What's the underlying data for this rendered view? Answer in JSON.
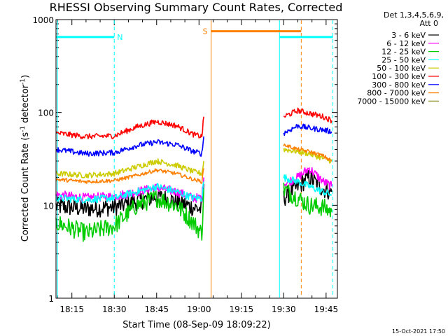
{
  "chart_data": {
    "type": "line",
    "title": "RHESSI Observing Summary Count Rates, Corrected",
    "xlabel": "Start Time (08-Sep-09 18:09:22)",
    "ylabel_parts": [
      "Corrected Count Rate (s",
      "-1",
      " detector",
      "-1",
      ")"
    ],
    "x_ticks": [
      "18:15",
      "18:30",
      "18:45",
      "19:00",
      "19:15",
      "19:30",
      "19:45"
    ],
    "x_tick_minutes": [
      15,
      30,
      45,
      60,
      75,
      90,
      105
    ],
    "xlim_minutes": [
      9.37,
      109.0
    ],
    "y_scale": "log",
    "ylim": [
      1,
      1000
    ],
    "y_ticks": [
      "1",
      "10",
      "100",
      "1000"
    ],
    "y_tick_values": [
      1,
      10,
      100,
      1000
    ],
    "legend_header": [
      "Det 1,3,4,5,6,9,",
      "Att 0"
    ],
    "legend_placement": "outside-right",
    "series": [
      {
        "name": "3 - 6 keV",
        "color": "#000000",
        "noise": 0.1,
        "points": [
          [
            9.37,
            9.8
          ],
          [
            20,
            9.2
          ],
          [
            30,
            9.6
          ],
          [
            38,
            11
          ],
          [
            45,
            12.5
          ],
          [
            52,
            11
          ],
          [
            58,
            9.5
          ],
          [
            61,
            9
          ],
          [
            61.7,
            17
          ],
          [
            90,
            12
          ],
          [
            95,
            16
          ],
          [
            99,
            20
          ],
          [
            104,
            15
          ],
          [
            107,
            14
          ]
        ]
      },
      {
        "name": "6 - 12 keV",
        "color": "#ff00ff",
        "noise": 0.05,
        "points": [
          [
            9.37,
            13
          ],
          [
            20,
            12
          ],
          [
            30,
            12.5
          ],
          [
            38,
            14
          ],
          [
            45,
            15.5
          ],
          [
            52,
            14
          ],
          [
            58,
            12
          ],
          [
            61,
            12
          ],
          [
            61.7,
            20
          ],
          [
            90,
            17
          ],
          [
            95,
            20
          ],
          [
            99,
            25
          ],
          [
            104,
            18
          ],
          [
            107,
            16
          ]
        ]
      },
      {
        "name": "12 - 25 keV",
        "color": "#00cc00",
        "noise": 0.1,
        "points": [
          [
            9.37,
            6.5
          ],
          [
            20,
            5
          ],
          [
            30,
            6
          ],
          [
            38,
            10
          ],
          [
            45,
            12
          ],
          [
            52,
            10
          ],
          [
            58,
            6.5
          ],
          [
            61,
            5
          ],
          [
            61.7,
            15
          ],
          [
            90,
            15
          ],
          [
            95,
            12
          ],
          [
            99,
            10
          ],
          [
            104,
            9.5
          ],
          [
            107,
            8.5
          ]
        ]
      },
      {
        "name": "25 - 50 keV",
        "color": "#00ffff",
        "noise": 0.04,
        "points": [
          [
            9.37,
            12
          ],
          [
            20,
            11.5
          ],
          [
            30,
            12
          ],
          [
            38,
            14
          ],
          [
            45,
            16
          ],
          [
            52,
            14
          ],
          [
            58,
            12
          ],
          [
            61,
            12
          ],
          [
            61.7,
            18
          ],
          [
            90,
            20
          ],
          [
            95,
            18
          ],
          [
            99,
            16
          ],
          [
            104,
            14
          ],
          [
            107,
            13
          ]
        ]
      },
      {
        "name": "50 - 100 keV",
        "color": "#cccc00",
        "noise": 0.03,
        "points": [
          [
            9.37,
            22
          ],
          [
            20,
            21
          ],
          [
            30,
            22
          ],
          [
            38,
            26
          ],
          [
            45,
            30
          ],
          [
            52,
            27
          ],
          [
            58,
            23
          ],
          [
            61,
            22
          ],
          [
            61.7,
            30
          ],
          [
            90,
            40
          ],
          [
            95,
            38
          ],
          [
            99,
            36
          ],
          [
            104,
            32
          ],
          [
            107,
            30
          ]
        ]
      },
      {
        "name": "100 - 300 keV",
        "color": "#ff0000",
        "noise": 0.03,
        "points": [
          [
            9.37,
            60
          ],
          [
            20,
            55
          ],
          [
            30,
            56
          ],
          [
            38,
            70
          ],
          [
            45,
            80
          ],
          [
            52,
            72
          ],
          [
            58,
            58
          ],
          [
            61,
            55
          ],
          [
            61.7,
            90
          ],
          [
            90,
            90
          ],
          [
            95,
            105
          ],
          [
            99,
            98
          ],
          [
            104,
            90
          ],
          [
            107,
            82
          ]
        ]
      },
      {
        "name": "300 - 800 keV",
        "color": "#0000ff",
        "noise": 0.03,
        "points": [
          [
            9.37,
            40
          ],
          [
            20,
            36
          ],
          [
            30,
            37
          ],
          [
            38,
            44
          ],
          [
            45,
            48
          ],
          [
            52,
            45
          ],
          [
            58,
            38
          ],
          [
            61,
            36
          ],
          [
            61.7,
            55
          ],
          [
            90,
            60
          ],
          [
            95,
            72
          ],
          [
            99,
            68
          ],
          [
            104,
            65
          ],
          [
            107,
            62
          ]
        ]
      },
      {
        "name": "800 - 7000 keV",
        "color": "#ff8000",
        "noise": 0.02,
        "points": [
          [
            9.37,
            19
          ],
          [
            20,
            18
          ],
          [
            30,
            18.5
          ],
          [
            38,
            21
          ],
          [
            45,
            24
          ],
          [
            52,
            22
          ],
          [
            58,
            19
          ],
          [
            61,
            18
          ],
          [
            61.7,
            25
          ],
          [
            90,
            45
          ],
          [
            95,
            40
          ],
          [
            99,
            38
          ],
          [
            104,
            34
          ],
          [
            107,
            30
          ]
        ]
      },
      {
        "name": "7000 - 15000 keV",
        "color": "#808000",
        "noise": 0.0,
        "points": []
      }
    ],
    "flags": [
      {
        "label": "N",
        "color": "#00ffff",
        "value": 650,
        "spans": [
          [
            9.37,
            30.0
          ],
          [
            88.5,
            107.4
          ]
        ],
        "show_label": true
      },
      {
        "label": "S",
        "color": "#ff8000",
        "value": 750,
        "spans": [
          [
            64.3,
            96.2
          ]
        ],
        "show_label": true
      }
    ],
    "vertical_lines": [
      {
        "x": 9.9,
        "color": "#00ffff",
        "style": "solid"
      },
      {
        "x": 30.0,
        "color": "#00ffff",
        "style": "dashed"
      },
      {
        "x": 64.3,
        "color": "#ff8000",
        "style": "solid"
      },
      {
        "x": 88.5,
        "color": "#00ffff",
        "style": "solid"
      },
      {
        "x": 96.2,
        "color": "#ff8000",
        "style": "dashed"
      },
      {
        "x": 107.4,
        "color": "#00ffff",
        "style": "dashed"
      }
    ],
    "footer_timestamp": "15-Oct-2021 17:50"
  }
}
